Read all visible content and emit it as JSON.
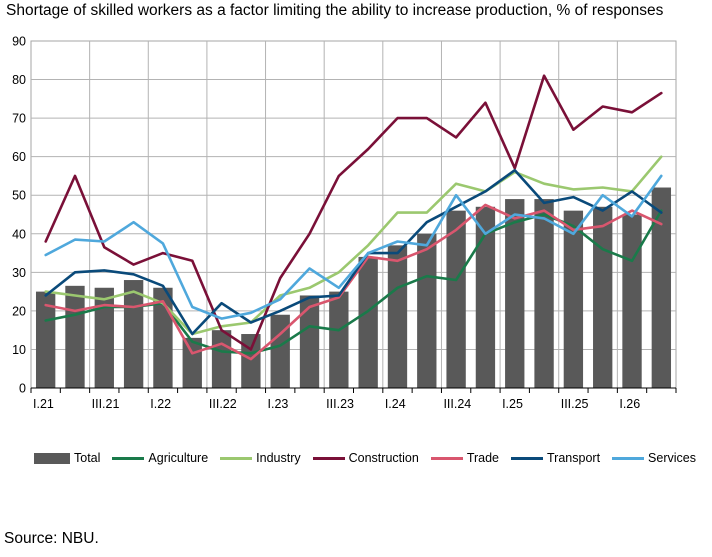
{
  "source_note": "Source: NBU.",
  "chart_data": {
    "type": "bar",
    "title": "Shortage of skilled workers as a factor limiting the ability to increase production, % of responses",
    "xlabel": "",
    "ylabel": "",
    "ylim": [
      0,
      90
    ],
    "yticks": [
      0,
      10,
      20,
      30,
      40,
      50,
      60,
      70,
      80,
      90
    ],
    "grid": true,
    "legend_position": "bottom",
    "categories": [
      "I.21",
      "II.21",
      "III.21",
      "IV.21",
      "I.22",
      "II.22",
      "III.22",
      "IV.22",
      "I.23",
      "II.23",
      "III.23",
      "IV.23",
      "I.24",
      "II.24",
      "III.24",
      "IV.24",
      "I.25",
      "II.25",
      "III.25",
      "IV.25",
      "I.26",
      "II.26"
    ],
    "x_tick_labels": [
      "I.21",
      "III.21",
      "I.22",
      "III.22",
      "I.23",
      "III.23",
      "I.24",
      "III.24",
      "I.25",
      "III.25",
      "I.26"
    ],
    "bars": {
      "name": "Total",
      "color": "#595959",
      "values": [
        25,
        26.5,
        26,
        28,
        26,
        13,
        15,
        14,
        19,
        24,
        25,
        34,
        37,
        40,
        46,
        47,
        49,
        49,
        46,
        47,
        45,
        52
      ]
    },
    "series": [
      {
        "name": "Agriculture",
        "color": "#1a7a4a",
        "values": [
          17.5,
          19,
          21,
          21,
          22,
          12,
          9.5,
          9,
          11,
          16,
          15,
          20,
          26,
          29,
          28,
          40,
          43,
          45,
          42,
          36,
          33,
          46
        ]
      },
      {
        "name": "Industry",
        "color": "#9bc86f",
        "values": [
          25,
          24,
          23,
          25,
          22,
          14,
          16,
          17,
          24,
          26,
          30,
          37,
          45.5,
          45.5,
          53,
          51,
          56,
          53,
          51.5,
          52,
          51,
          60
        ]
      },
      {
        "name": "Construction",
        "color": "#7a1038",
        "values": [
          38,
          55,
          36.5,
          32,
          35,
          33,
          15,
          10,
          28.5,
          40,
          55,
          62,
          70,
          70,
          65,
          74,
          57,
          81,
          67,
          73,
          71.5,
          76.5
        ]
      },
      {
        "name": "Trade",
        "color": "#d9566e",
        "values": [
          21.5,
          20,
          21.5,
          21,
          22.5,
          9,
          11.5,
          7.5,
          14,
          21,
          23.5,
          34,
          33,
          36,
          41,
          47.5,
          44,
          46,
          41,
          42,
          46,
          42.5
        ]
      },
      {
        "name": "Transport",
        "color": "#0a4a7a",
        "values": [
          24,
          30,
          30.5,
          29.5,
          26.5,
          14,
          22,
          17,
          20,
          23.5,
          24,
          35,
          35,
          43,
          47,
          51,
          56.5,
          48,
          49.5,
          46,
          51,
          45.5
        ]
      },
      {
        "name": "Services",
        "color": "#4fa8dc",
        "values": [
          34.5,
          38.5,
          38,
          43,
          37.5,
          21,
          18,
          19.5,
          23,
          31,
          26,
          35,
          38,
          37,
          50,
          40,
          45,
          44,
          40,
          50,
          44.5,
          55
        ]
      }
    ]
  }
}
